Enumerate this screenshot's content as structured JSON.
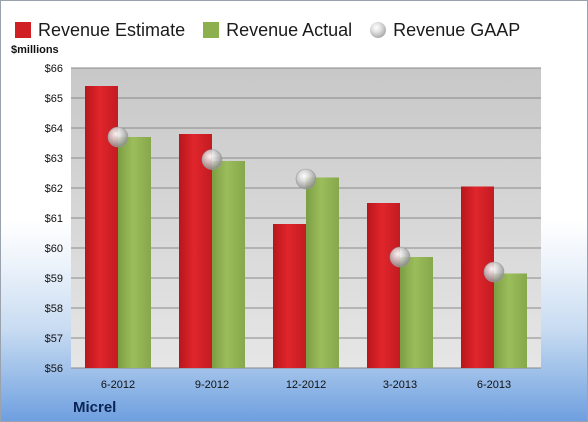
{
  "chart_data": {
    "type": "bar",
    "ylabel": "$millions",
    "categories": [
      "6-2012",
      "9-2012",
      "12-2012",
      "3-2013",
      "6-2013"
    ],
    "series": [
      {
        "name": "Revenue Estimate",
        "kind": "bar",
        "color": "#d01f25",
        "values": [
          65.4,
          63.8,
          60.8,
          61.5,
          62.05
        ]
      },
      {
        "name": "Revenue Actual",
        "kind": "bar",
        "color": "#8db04f",
        "values": [
          63.7,
          62.9,
          62.35,
          59.7,
          59.15
        ]
      },
      {
        "name": "Revenue GAAP",
        "kind": "marker",
        "color": "#b8b8b8",
        "values": [
          63.7,
          62.95,
          62.3,
          59.7,
          59.2
        ]
      }
    ],
    "ylim": [
      56,
      66
    ],
    "yticks": [
      "$56",
      "$57",
      "$58",
      "$59",
      "$60",
      "$61",
      "$62",
      "$63",
      "$64",
      "$65",
      "$66"
    ],
    "grid": true,
    "legend_position": "top"
  },
  "company": "Micrel"
}
